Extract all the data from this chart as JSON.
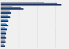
{
  "n_groups": 11,
  "values_2019": [
    250,
    95,
    44,
    40,
    32,
    30,
    27,
    24,
    22,
    20,
    18
  ],
  "values_2018": [
    235,
    82,
    42,
    37,
    30,
    27,
    25,
    22,
    21,
    19,
    17
  ],
  "values_2013": [
    180,
    48,
    36,
    32,
    28,
    22,
    18,
    19,
    18,
    16,
    14
  ],
  "color_2019": "#1a2f5e",
  "color_2018": "#3a7bbf",
  "color_2013": "#a8a8a8",
  "background": "#f0f0f0",
  "bar_height": 0.28,
  "xlim": [
    0,
    280
  ],
  "grid_color": "#d0d0d0"
}
